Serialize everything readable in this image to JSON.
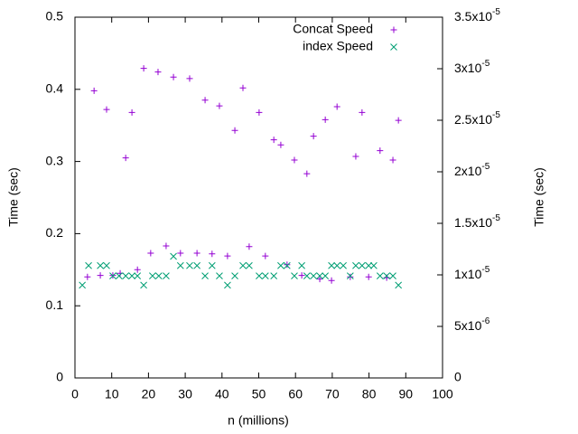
{
  "chart_data": {
    "type": "scatter",
    "x_label": "n (millions)",
    "y_label": "Time (sec)",
    "y2_label": "Time (sec)",
    "xlim": [
      0,
      100
    ],
    "xticks": [
      0,
      10,
      20,
      30,
      40,
      50,
      60,
      70,
      80,
      90,
      100
    ],
    "ylim": [
      0,
      0.5
    ],
    "yticks": [
      0,
      0.1,
      0.2,
      0.3,
      0.4,
      0.5
    ],
    "y2lim": [
      0,
      3.5e-05
    ],
    "y2ticks": [
      0,
      {
        "value": 5e-06,
        "label": "5x10-6"
      },
      {
        "value": 1e-05,
        "label": "1x10-5"
      },
      {
        "value": 1.5e-05,
        "label": "1.5x10-5"
      },
      {
        "value": 2e-05,
        "label": "2x10-5"
      },
      {
        "value": 2.5e-05,
        "label": "2.5x10-5"
      },
      {
        "value": 3e-05,
        "label": "3x10-5"
      },
      {
        "value": 3.5e-05,
        "label": "3.5x10-5"
      }
    ],
    "legend": "upper right",
    "series": [
      {
        "name": "Concat Speed",
        "color": "#9400d3",
        "marker": "plus",
        "x": [
          5.2,
          8.6,
          13.8,
          15.5,
          18.7,
          22.6,
          26.8,
          31.2,
          35.4,
          39.3,
          43.5,
          45.7,
          50.1,
          54.1,
          56,
          59.7,
          63.1,
          64.9,
          68.1,
          71.3,
          76.4,
          78.1,
          83,
          86.5,
          88,
          3.4,
          6.9,
          10.3,
          12.3,
          17,
          20.6,
          24.8,
          28.7,
          33.2,
          37.3,
          41.5,
          47.4,
          51.8,
          57.7,
          61.7,
          66.6,
          69.8,
          74.9,
          79.9,
          84.8
        ],
        "values": [
          0.398,
          0.372,
          0.305,
          0.368,
          0.429,
          0.424,
          0.417,
          0.415,
          0.385,
          0.377,
          0.343,
          0.402,
          0.368,
          0.33,
          0.323,
          0.302,
          0.283,
          0.335,
          0.358,
          0.376,
          0.307,
          0.368,
          0.315,
          0.302,
          0.357,
          0.14,
          0.142,
          0.142,
          0.145,
          0.15,
          0.173,
          0.183,
          0.173,
          0.173,
          0.172,
          0.169,
          0.182,
          0.169,
          0.157,
          0.142,
          0.137,
          0.135,
          0.14,
          0.14,
          0.139
        ]
      },
      {
        "name": "index Speed",
        "color": "#009e73",
        "marker": "cross",
        "axis": "y2",
        "x": [
          2,
          3.7,
          6.9,
          8.6,
          10.3,
          12,
          13.8,
          15.5,
          17,
          18.7,
          21.1,
          22.8,
          24.8,
          26.8,
          28.7,
          31.2,
          33.2,
          35.4,
          37.3,
          39.3,
          41.5,
          43.5,
          45.7,
          47.4,
          50.1,
          51.8,
          54.1,
          56,
          57.7,
          59.7,
          61.7,
          63.1,
          64.9,
          66.6,
          68.1,
          69.8,
          71.3,
          73,
          74.9,
          76.4,
          78.1,
          79.9,
          81.3,
          83,
          84.8,
          86.5,
          88
        ],
        "values": [
          9e-06,
          1.09e-05,
          1.09e-05,
          1.09e-05,
          9.9e-06,
          9.9e-06,
          9.9e-06,
          9.9e-06,
          9.9e-06,
          9e-06,
          9.9e-06,
          9.9e-06,
          9.9e-06,
          1.18e-05,
          1.09e-05,
          1.09e-05,
          1.09e-05,
          9.9e-06,
          1.09e-05,
          9.9e-06,
          9e-06,
          9.9e-06,
          1.09e-05,
          1.09e-05,
          9.9e-06,
          9.9e-06,
          9.9e-06,
          1.09e-05,
          1.09e-05,
          9.9e-06,
          1.09e-05,
          9.9e-06,
          9.9e-06,
          9.9e-06,
          9.9e-06,
          1.09e-05,
          1.09e-05,
          1.09e-05,
          9.9e-06,
          1.09e-05,
          1.09e-05,
          1.09e-05,
          1.09e-05,
          9.9e-06,
          9.9e-06,
          9.9e-06,
          9e-06
        ]
      }
    ]
  }
}
